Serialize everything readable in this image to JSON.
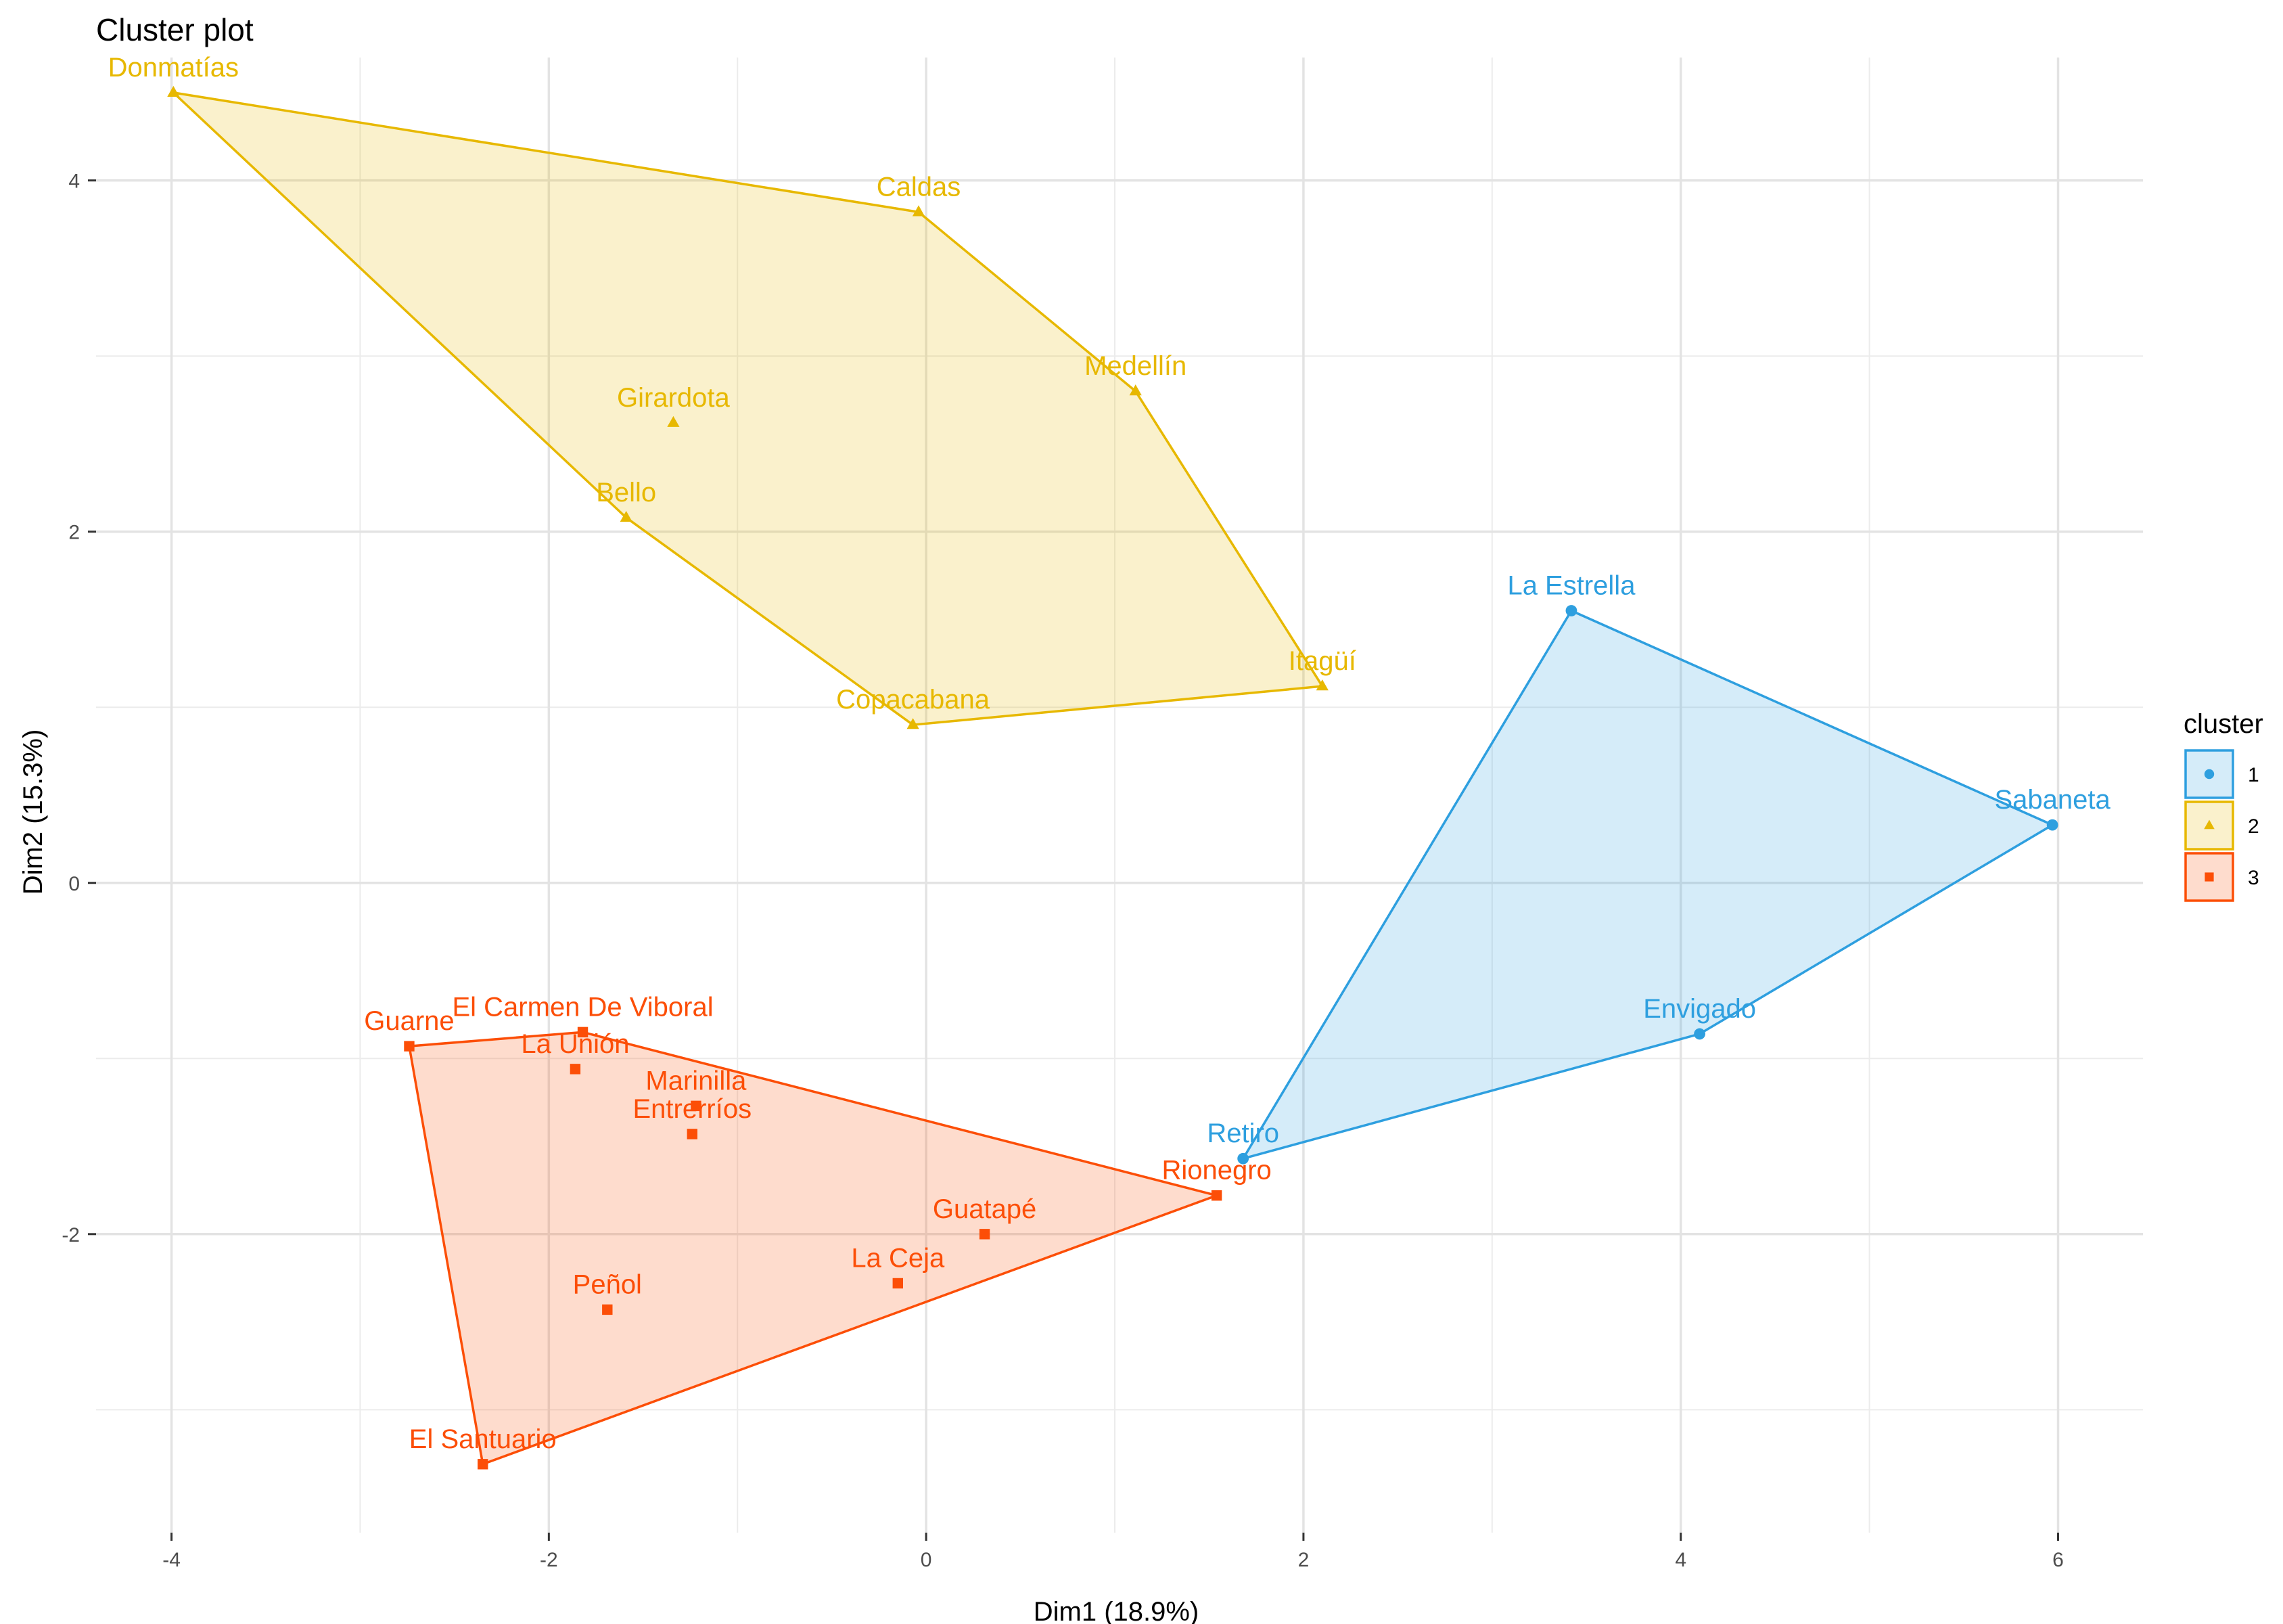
{
  "chart_data": {
    "type": "scatter",
    "title": "Cluster plot",
    "xlabel": "Dim1 (18.9%)",
    "ylabel": "Dim2 (15.3%)",
    "xlim": [
      -4.4,
      6.45
    ],
    "ylim": [
      -3.7,
      4.7
    ],
    "x_ticks": [
      -4,
      -2,
      0,
      2,
      4,
      6
    ],
    "y_ticks": [
      -2,
      0,
      2,
      4
    ],
    "grid": true,
    "legend": {
      "title": "cluster",
      "position": "right"
    },
    "clusters": [
      {
        "name": "1",
        "color": "#2E9FDF",
        "marker": "circle",
        "points": [
          {
            "label": "La Estrella",
            "x": 3.42,
            "y": 1.55
          },
          {
            "label": "Sabaneta",
            "x": 5.97,
            "y": 0.33
          },
          {
            "label": "Envigado",
            "x": 4.1,
            "y": -0.86
          },
          {
            "label": "Retiro",
            "x": 1.68,
            "y": -1.57
          }
        ],
        "hull": [
          "La Estrella",
          "Sabaneta",
          "Envigado",
          "Retiro"
        ]
      },
      {
        "name": "2",
        "color": "#E7B800",
        "marker": "triangle",
        "points": [
          {
            "label": "Donmatías",
            "x": -3.99,
            "y": 4.5
          },
          {
            "label": "Caldas",
            "x": -0.04,
            "y": 3.82
          },
          {
            "label": "Medellín",
            "x": 1.11,
            "y": 2.8
          },
          {
            "label": "Girardota",
            "x": -1.34,
            "y": 2.62
          },
          {
            "label": "Bello",
            "x": -1.59,
            "y": 2.08
          },
          {
            "label": "Itagüí",
            "x": 2.1,
            "y": 1.12
          },
          {
            "label": "Copacabana",
            "x": -0.07,
            "y": 0.9
          }
        ],
        "hull": [
          "Donmatías",
          "Caldas",
          "Medellín",
          "Itagüí",
          "Copacabana",
          "Bello"
        ]
      },
      {
        "name": "3",
        "color": "#FC4E07",
        "marker": "square",
        "points": [
          {
            "label": "Guarne",
            "x": -2.74,
            "y": -0.93
          },
          {
            "label": "El Carmen De Viboral",
            "x": -1.82,
            "y": -0.85
          },
          {
            "label": "La Unión",
            "x": -1.86,
            "y": -1.06
          },
          {
            "label": "Marinilla",
            "x": -1.22,
            "y": -1.27
          },
          {
            "label": "Entrerríos",
            "x": -1.24,
            "y": -1.43
          },
          {
            "label": "Rionegro",
            "x": 1.54,
            "y": -1.78
          },
          {
            "label": "Guatapé",
            "x": 0.31,
            "y": -2.0
          },
          {
            "label": "La Ceja",
            "x": -0.15,
            "y": -2.28
          },
          {
            "label": "Peñol",
            "x": -1.69,
            "y": -2.43
          },
          {
            "label": "El Santuario",
            "x": -2.35,
            "y": -3.31
          }
        ],
        "hull": [
          "Guarne",
          "El Carmen De Viboral",
          "Rionegro",
          "El Santuario"
        ]
      }
    ]
  }
}
